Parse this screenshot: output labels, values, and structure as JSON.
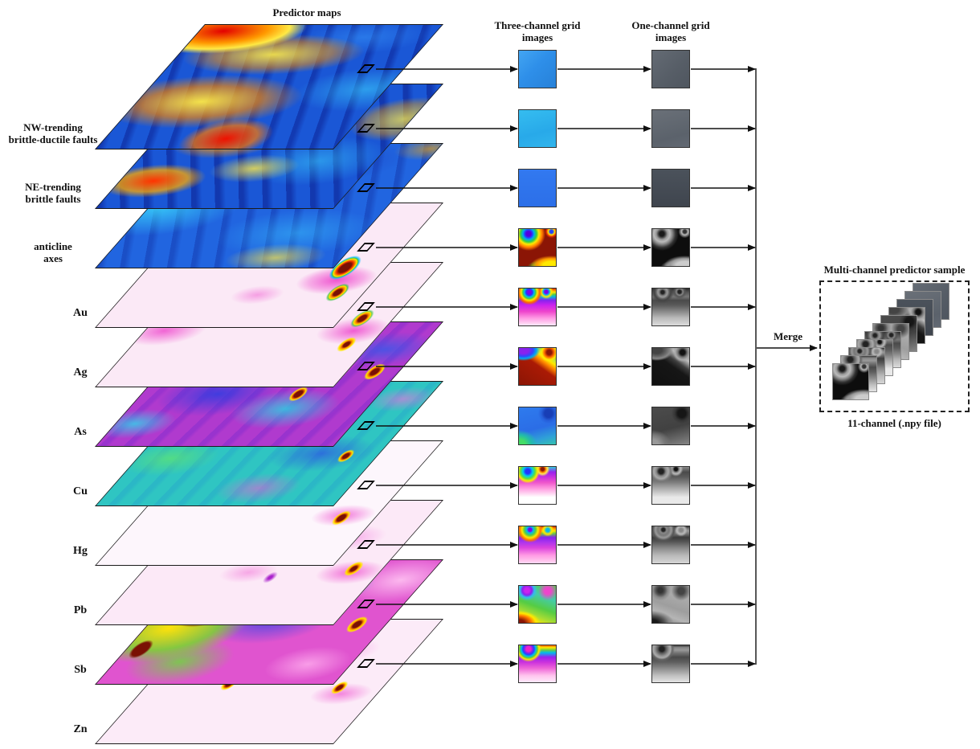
{
  "header": {
    "title": "Predictor maps"
  },
  "columns": {
    "three_channel": "Three-channel grid images",
    "one_channel": "One-channel grid images"
  },
  "merge": {
    "label": "Merge"
  },
  "output": {
    "title": "Multi-channel predictor sample",
    "caption": "11-channel (.npy file)",
    "channels": 11
  },
  "rows": [
    {
      "id": "nw-faults",
      "label": "NW-trending brittle-ductile faults",
      "lines": [
        "NW-trending",
        "brittle-ductile faults"
      ],
      "kind": "structural"
    },
    {
      "id": "ne-faults",
      "label": "NE-trending brittle faults",
      "lines": [
        "NE-trending",
        "brittle faults"
      ],
      "kind": "structural"
    },
    {
      "id": "anticline-axes",
      "label": "anticline axes",
      "lines": [
        "anticline",
        "axes"
      ],
      "kind": "structural"
    },
    {
      "id": "au",
      "label": "Au",
      "lines": [
        "Au"
      ],
      "kind": "geochemical"
    },
    {
      "id": "ag",
      "label": "Ag",
      "lines": [
        "Ag"
      ],
      "kind": "geochemical"
    },
    {
      "id": "as",
      "label": "As",
      "lines": [
        "As"
      ],
      "kind": "geochemical"
    },
    {
      "id": "cu",
      "label": "Cu",
      "lines": [
        "Cu"
      ],
      "kind": "geochemical"
    },
    {
      "id": "hg",
      "label": "Hg",
      "lines": [
        "Hg"
      ],
      "kind": "geochemical"
    },
    {
      "id": "pb",
      "label": "Pb",
      "lines": [
        "Pb"
      ],
      "kind": "geochemical"
    },
    {
      "id": "sb",
      "label": "Sb",
      "lines": [
        "Sb"
      ],
      "kind": "geochemical"
    },
    {
      "id": "zn",
      "label": "Zn",
      "lines": [
        "Zn"
      ],
      "kind": "geochemical"
    }
  ],
  "colors": {
    "arrow": "#111111",
    "jet_base_blue": "#1a57d6",
    "anomaly_base_pink": "#fbe9f6",
    "anomaly_magenta": "#ee44cc",
    "hotspot_dark_red": "#8b1505",
    "one_channel_gray": "#5a6169",
    "background": "#ffffff"
  }
}
